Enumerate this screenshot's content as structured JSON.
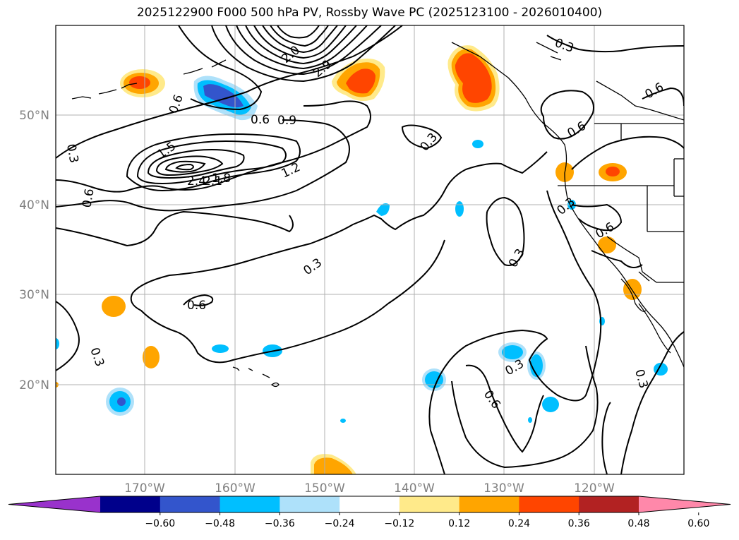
{
  "title": "2025122900 F000 500 hPa PV, Rossby Wave PC (2025123100 - 2026010400)",
  "lat_labels": [
    "50°N",
    "40°N",
    "30°N",
    "20°N"
  ],
  "lon_labels": [
    "170°W",
    "160°W",
    "150°W",
    "140°W",
    "130°W",
    "120°W"
  ],
  "colorbar": {
    "ticks": [
      "−0.60",
      "−0.48",
      "−0.36",
      "−0.24",
      "−0.12",
      "0.12",
      "0.24",
      "0.36",
      "0.48",
      "0.60"
    ],
    "colors": [
      "#9932cc",
      "#00008b",
      "#3355cc",
      "#00bfff",
      "#aee1fa",
      "#ffffff",
      "#ffea8a",
      "#ffa500",
      "#ff4500",
      "#b22222",
      "#ff88aa"
    ]
  },
  "contour_labels": [
    "0.3",
    "0.6",
    "0.9",
    "1.2",
    "1.5",
    "1.8",
    "2.1",
    "2.4",
    "2.0",
    "2.9"
  ]
}
